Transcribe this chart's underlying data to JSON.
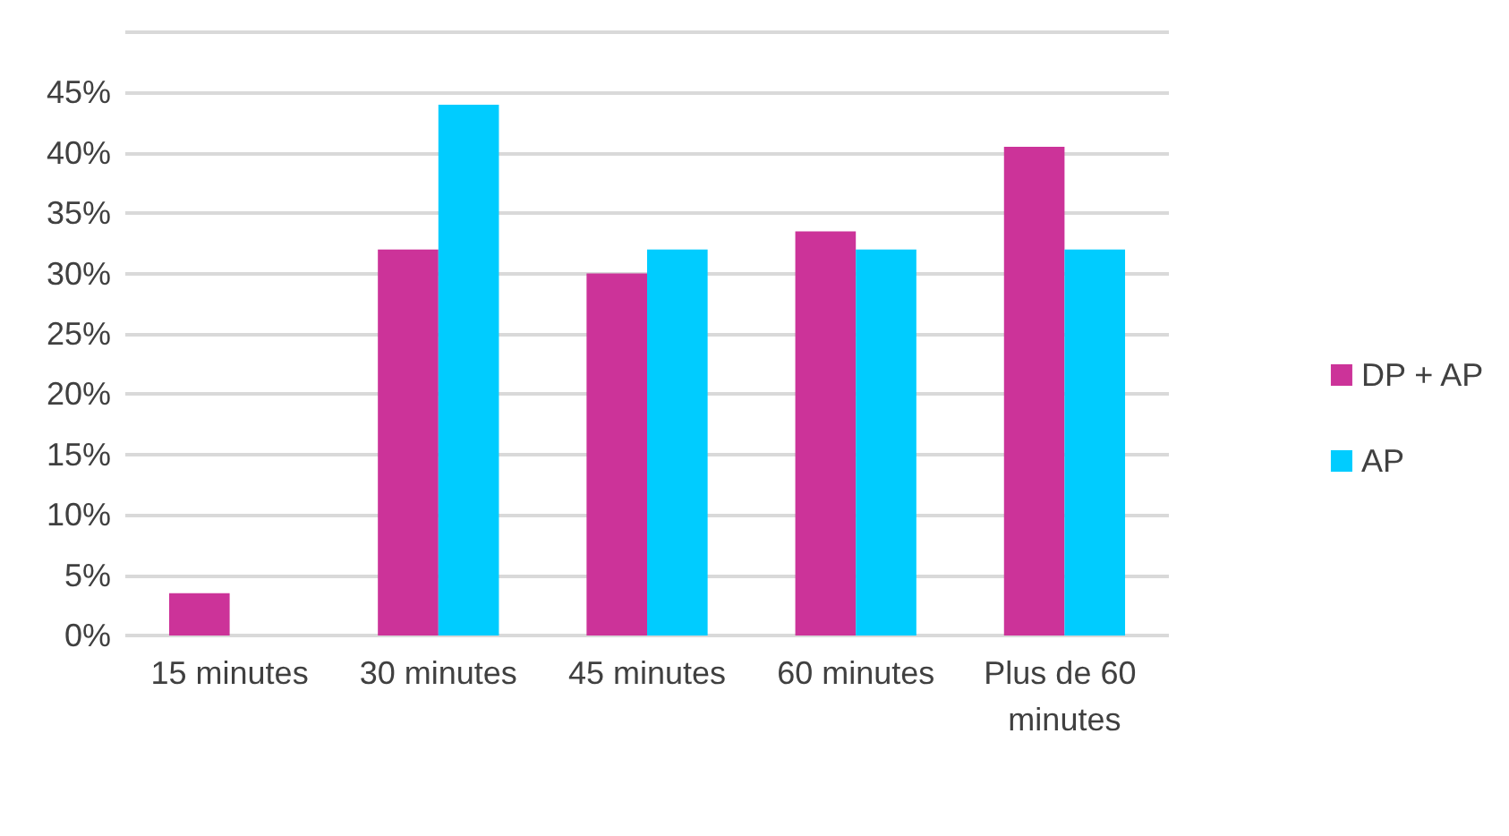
{
  "chart_data": {
    "type": "bar",
    "categories": [
      "15 minutes",
      "30 minutes",
      "45 minutes",
      "60 minutes",
      "Plus de 60 minutes"
    ],
    "series": [
      {
        "name": "DP + AP",
        "color": "#cc3399",
        "values": [
          3.5,
          32,
          30,
          33.5,
          40.5
        ]
      },
      {
        "name": "AP",
        "color": "#00ccff",
        "values": [
          0,
          44,
          32,
          32,
          32
        ]
      }
    ],
    "ylim": [
      0,
      50
    ],
    "yticks": [
      {
        "value": 0,
        "label": "0%"
      },
      {
        "value": 5,
        "label": "5%"
      },
      {
        "value": 10,
        "label": "10%"
      },
      {
        "value": 15,
        "label": "15%"
      },
      {
        "value": 20,
        "label": "20%"
      },
      {
        "value": 25,
        "label": "25%"
      },
      {
        "value": 30,
        "label": "30%"
      },
      {
        "value": 35,
        "label": "35%"
      },
      {
        "value": 40,
        "label": "40%"
      },
      {
        "value": 45,
        "label": "45%"
      },
      {
        "value": 50,
        "label": null
      }
    ],
    "grid": true,
    "legend": "right"
  }
}
